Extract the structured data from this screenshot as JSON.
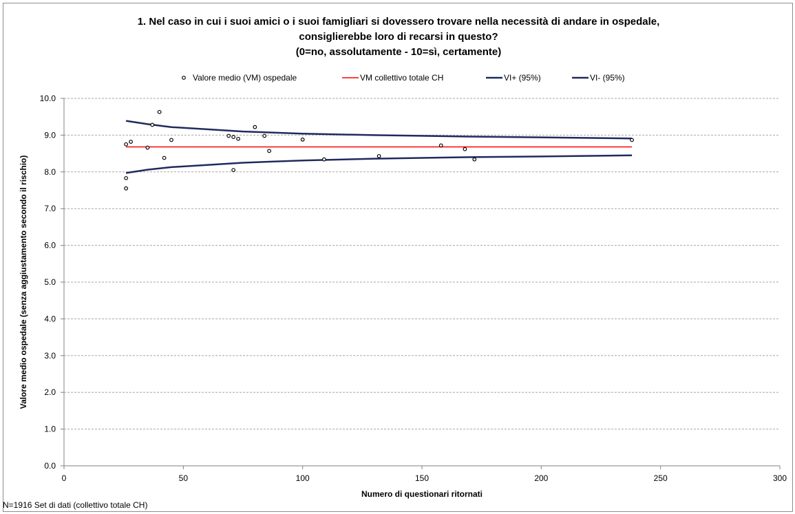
{
  "chart_data": {
    "type": "scatter",
    "title": [
      "1. Nel caso in cui i suoi amici o i suoi famigliari si dovessero trovare nella necessità di andare in ospedale,",
      "consiglierebbe loro di recarsi in questo?",
      "(0=no, assolutamente - 10=sì, certamente)"
    ],
    "xlabel": "Numero di questionari ritornati",
    "ylabel": "Valore medio ospedale (senza aggiustamento secondo il rischio)",
    "xlim": [
      0,
      300
    ],
    "ylim": [
      0,
      10
    ],
    "x_ticks": [
      "0",
      "50",
      "100",
      "150",
      "200",
      "250",
      "300"
    ],
    "y_ticks": [
      "0.0",
      "1.0",
      "2.0",
      "3.0",
      "4.0",
      "5.0",
      "6.0",
      "7.0",
      "8.0",
      "9.0",
      "10.0"
    ],
    "grid": "horizontal dashed",
    "legend_position": "top",
    "legend": [
      {
        "label": "Valore medio (VM) ospedale",
        "kind": "marker"
      },
      {
        "label": "VM collettivo totale CH",
        "kind": "line",
        "color": "#ff0000"
      },
      {
        "label": "VI+ (95%)",
        "kind": "line",
        "color": "#1f2a5e"
      },
      {
        "label": "VI- (95%)",
        "kind": "line",
        "color": "#1f2a5e"
      }
    ],
    "series": [
      {
        "name": "Valore medio (VM) ospedale",
        "type": "scatter",
        "points": [
          [
            26,
            8.75
          ],
          [
            26,
            7.83
          ],
          [
            26,
            7.55
          ],
          [
            28,
            8.82
          ],
          [
            35,
            8.66
          ],
          [
            37,
            9.28
          ],
          [
            40,
            9.63
          ],
          [
            42,
            8.38
          ],
          [
            45,
            8.87
          ],
          [
            69,
            8.98
          ],
          [
            71,
            8.95
          ],
          [
            71,
            8.05
          ],
          [
            73,
            8.9
          ],
          [
            80,
            9.22
          ],
          [
            84,
            8.98
          ],
          [
            86,
            8.57
          ],
          [
            100,
            8.88
          ],
          [
            109,
            8.34
          ],
          [
            132,
            8.43
          ],
          [
            158,
            8.72
          ],
          [
            168,
            8.62
          ],
          [
            172,
            8.34
          ],
          [
            238,
            8.87
          ]
        ]
      },
      {
        "name": "VM collettivo totale CH",
        "type": "line",
        "color": "#ff0000",
        "points": [
          [
            26,
            8.68
          ],
          [
            238,
            8.68
          ]
        ]
      },
      {
        "name": "VI+ (95%)",
        "type": "line",
        "color": "#1f2a5e",
        "points": [
          [
            26,
            9.39
          ],
          [
            35,
            9.3
          ],
          [
            45,
            9.22
          ],
          [
            60,
            9.16
          ],
          [
            75,
            9.1
          ],
          [
            100,
            9.04
          ],
          [
            130,
            9.0
          ],
          [
            170,
            8.96
          ],
          [
            200,
            8.94
          ],
          [
            238,
            8.91
          ]
        ]
      },
      {
        "name": "VI- (95%)",
        "type": "line",
        "color": "#1f2a5e",
        "points": [
          [
            26,
            7.97
          ],
          [
            35,
            8.06
          ],
          [
            45,
            8.13
          ],
          [
            60,
            8.19
          ],
          [
            75,
            8.25
          ],
          [
            100,
            8.31
          ],
          [
            130,
            8.36
          ],
          [
            170,
            8.4
          ],
          [
            200,
            8.42
          ],
          [
            238,
            8.45
          ]
        ]
      }
    ]
  },
  "footnote": "N=1916 Set di dati (collettivo totale CH)",
  "colors": {
    "marker_stroke": "#000000",
    "mean_line": "#ff0000",
    "interval_line": "#1f2a5e",
    "grid": "#a6a6a6",
    "axis": "#808080"
  }
}
